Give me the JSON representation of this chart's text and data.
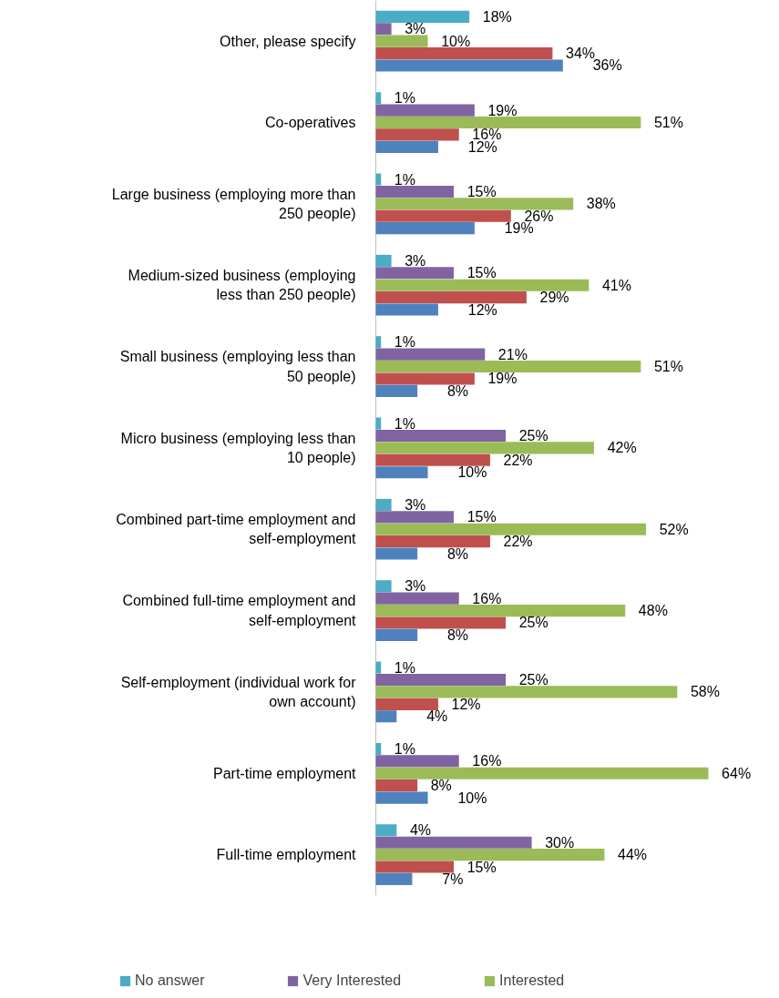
{
  "chart_data": {
    "type": "bar",
    "orientation": "horizontal",
    "categories": [
      "Other, please specify",
      "Co-operatives",
      "Large business (employing more than 250 people)",
      "Medium-sized business (employing less than 250 people)",
      "Small business (employing less than 50 people)",
      "Micro business (employing less than 10 people)",
      "Combined part-time employment and self-employment",
      "Combined full-time employment and self-employment",
      "Self-employment (individual work for own account)",
      "Part-time employment",
      "Full-time employment"
    ],
    "series": [
      {
        "name": "No answer",
        "color": "#4bacc6",
        "values": [
          18,
          1,
          1,
          3,
          1,
          1,
          3,
          3,
          1,
          1,
          4
        ],
        "value_labels": [
          "18%",
          "1%",
          "1%",
          "3%",
          "1%",
          "1%",
          "3%",
          "3%",
          "1%",
          "1%",
          "4%"
        ]
      },
      {
        "name": "Very Interested",
        "color": "#8064a2",
        "values": [
          3,
          19,
          15,
          15,
          21,
          25,
          15,
          16,
          25,
          16,
          30
        ],
        "value_labels": [
          "3%",
          "19%",
          "15%",
          "15%",
          "21%",
          "25%",
          "15%",
          "16%",
          "25%",
          "16%",
          "30%"
        ]
      },
      {
        "name": "Interested",
        "color": "#9bbb59",
        "values": [
          10,
          51,
          38,
          41,
          51,
          42,
          52,
          48,
          58,
          64,
          44
        ],
        "value_labels": [
          "10%",
          "51%",
          "38%",
          "41%",
          "51%",
          "42%",
          "52%",
          "48%",
          "58%",
          "64%",
          "44%"
        ]
      },
      {
        "color": "#c0504d",
        "values": [
          34,
          16,
          26,
          29,
          19,
          22,
          22,
          25,
          12,
          8,
          15
        ],
        "value_labels": [
          "34%",
          "16%",
          "26%",
          "29%",
          "19%",
          "22%",
          "22%",
          "25%",
          "12%",
          "8%",
          "15%"
        ]
      },
      {
        "color": "#4f81bd",
        "values": [
          36,
          12,
          19,
          12,
          8,
          10,
          8,
          8,
          4,
          10,
          7
        ],
        "value_labels": [
          "36%",
          "12%",
          "19%",
          "12%",
          "8%",
          "10%",
          "8%",
          "8%",
          "4%",
          "10%",
          "7%"
        ]
      }
    ],
    "legend": "bottom",
    "grid": false,
    "tick_labels": "y"
  }
}
